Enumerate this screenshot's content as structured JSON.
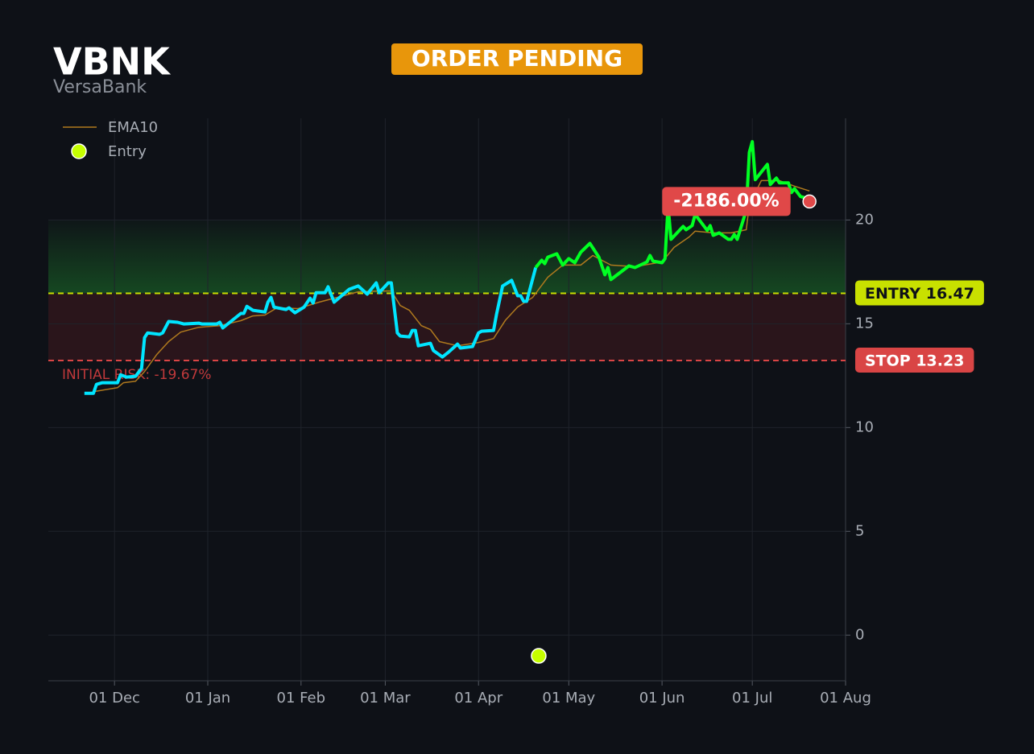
{
  "chart_data": {
    "type": "line",
    "title": "VBNK",
    "subtitle": "VersaBank",
    "status": "ORDER PENDING",
    "xlim": [
      "11-09",
      "08-01"
    ],
    "xticks": [
      {
        "value": "12-01",
        "label": "01 Dec"
      },
      {
        "value": "01-01",
        "label": "01 Jan"
      },
      {
        "value": "02-01",
        "label": "01 Feb"
      },
      {
        "value": "03-01",
        "label": "01 Mar"
      },
      {
        "value": "04-01",
        "label": "01 Apr"
      },
      {
        "value": "05-01",
        "label": "01 May"
      },
      {
        "value": "06-01",
        "label": "01 Jun"
      },
      {
        "value": "07-01",
        "label": "01 Jul"
      },
      {
        "value": "08-01",
        "label": "01 Aug"
      }
    ],
    "ylim": [
      -2.2,
      24.9
    ],
    "yticks": [
      0,
      5,
      10,
      15,
      20
    ],
    "grid": true,
    "legend": "upper left",
    "zones": [
      {
        "from": 16.47,
        "to": 20,
        "color": "#1f8a2e"
      },
      {
        "from": 13.23,
        "to": 16.47,
        "color": "#2a151b"
      }
    ],
    "entry": {
      "value": 16.47,
      "label": "ENTRY 16.47",
      "color": "#c8e000"
    },
    "stop": {
      "value": 13.23,
      "label": "STOP 13.23",
      "color": "#d94545"
    },
    "risk_annotation": "INITIAL RISK: -19.67%",
    "last_point": {
      "x": "07-20",
      "value": 20.89,
      "label": "-2186.00%",
      "color": "#e04848"
    },
    "series": [
      {
        "color": "#00e5ff",
        "x": [
          "11-21",
          "11-24",
          "11-25",
          "11-27",
          "12-02",
          "12-03",
          "12-05",
          "12-08",
          "12-10",
          "12-11",
          "12-12",
          "12-16",
          "12-17",
          "12-19",
          "12-22",
          "12-24",
          "12-29",
          "12-30",
          "01-04",
          "01-05",
          "01-06",
          "01-12",
          "01-13",
          "01-14",
          "01-16",
          "01-20",
          "01-21",
          "01-22",
          "01-23",
          "01-27",
          "01-28",
          "01-30",
          "02-02",
          "02-04",
          "02-05",
          "02-06",
          "02-09",
          "02-10",
          "02-12",
          "02-17",
          "02-20",
          "02-23",
          "02-26",
          "02-27",
          "03-02",
          "03-03",
          "03-05",
          "03-06",
          "03-09",
          "03-10",
          "03-11",
          "03-12",
          "03-16",
          "03-17",
          "03-20",
          "03-22",
          "03-25",
          "03-26",
          "03-30",
          "04-01",
          "04-02",
          "04-06",
          "04-07",
          "04-09",
          "04-12",
          "04-14",
          "04-15",
          "04-16",
          "04-17",
          "04-20"
        ],
        "values": [
          11.65,
          11.65,
          12.08,
          12.16,
          12.16,
          12.54,
          12.43,
          12.47,
          12.85,
          14.33,
          14.56,
          14.49,
          14.56,
          15.11,
          15.07,
          14.99,
          15.03,
          14.99,
          14.99,
          15.07,
          14.8,
          15.5,
          15.5,
          15.84,
          15.65,
          15.57,
          16.04,
          16.27,
          15.8,
          15.69,
          15.77,
          15.53,
          15.8,
          16.23,
          16.0,
          16.5,
          16.5,
          16.78,
          16.04,
          16.66,
          16.82,
          16.43,
          16.97,
          16.5,
          16.97,
          16.97,
          14.56,
          14.41,
          14.37,
          14.68,
          14.68,
          13.94,
          14.06,
          13.71,
          13.4,
          13.63,
          14.02,
          13.83,
          13.9,
          14.56,
          14.64,
          14.68,
          15.46,
          16.82,
          17.09,
          16.35,
          16.35,
          16.08,
          16.08,
          17.71
        ]
      },
      {
        "color": "#00ff22",
        "x": [
          "04-20",
          "04-22",
          "04-23",
          "04-24",
          "04-27",
          "04-29",
          "05-01",
          "05-03",
          "05-05",
          "05-08",
          "05-11",
          "05-13",
          "05-14",
          "05-15",
          "05-21",
          "05-23",
          "05-27",
          "05-28",
          "05-29",
          "06-01",
          "06-02",
          "06-03",
          "06-04",
          "06-08",
          "06-09",
          "06-11",
          "06-12",
          "06-16",
          "06-17",
          "06-18",
          "06-20",
          "06-23",
          "06-24",
          "06-25",
          "06-26",
          "06-29",
          "06-30",
          "07-01",
          "07-02",
          "07-06",
          "07-07",
          "07-09",
          "07-10",
          "07-13",
          "07-14",
          "07-15",
          "07-17",
          "07-19"
        ],
        "values": [
          17.71,
          18.06,
          17.9,
          18.21,
          18.37,
          17.83,
          18.14,
          17.94,
          18.45,
          18.87,
          18.21,
          17.36,
          17.71,
          17.13,
          17.79,
          17.71,
          17.98,
          18.29,
          18.02,
          17.94,
          18.14,
          20.66,
          19.07,
          19.69,
          19.53,
          19.73,
          20.27,
          19.5,
          19.73,
          19.26,
          19.38,
          19.07,
          19.07,
          19.3,
          19.07,
          20.47,
          23.26,
          23.77,
          21.94,
          22.68,
          21.71,
          22.02,
          21.79,
          21.79,
          21.32,
          21.51,
          21.13,
          21.05
        ]
      },
      {
        "name": "EMA10",
        "color": "#b07a1e",
        "x": [
          "11-24",
          "12-02",
          "12-04",
          "12-08",
          "12-11",
          "12-15",
          "12-19",
          "12-23",
          "12-29",
          "01-05",
          "01-12",
          "01-16",
          "01-20",
          "01-24",
          "01-31",
          "02-07",
          "02-13",
          "02-20",
          "02-27",
          "03-03",
          "03-06",
          "03-09",
          "03-13",
          "03-16",
          "03-19",
          "03-25",
          "04-01",
          "04-06",
          "04-10",
          "04-14",
          "04-19",
          "04-24",
          "04-29",
          "05-05",
          "05-09",
          "05-15",
          "05-23",
          "06-01",
          "06-05",
          "06-10",
          "06-12",
          "06-18",
          "06-24",
          "06-29",
          "06-30",
          "07-04",
          "07-10",
          "07-15",
          "07-20"
        ],
        "values": [
          11.73,
          11.92,
          12.16,
          12.23,
          12.7,
          13.51,
          14.14,
          14.6,
          14.83,
          14.91,
          15.15,
          15.38,
          15.42,
          15.77,
          15.73,
          16.04,
          16.27,
          16.54,
          16.58,
          16.58,
          15.88,
          15.65,
          14.91,
          14.72,
          14.14,
          13.94,
          14.1,
          14.29,
          15.18,
          15.81,
          16.27,
          17.24,
          17.83,
          17.83,
          18.29,
          17.83,
          17.75,
          17.98,
          18.68,
          19.18,
          19.46,
          19.38,
          19.38,
          19.53,
          20.74,
          21.9,
          21.9,
          21.63,
          21.4
        ]
      },
      {
        "name": "Entry",
        "type": "scatter",
        "color": "#c6ff00",
        "x": [
          "04-21"
        ],
        "values": [
          -1.0
        ]
      }
    ]
  }
}
